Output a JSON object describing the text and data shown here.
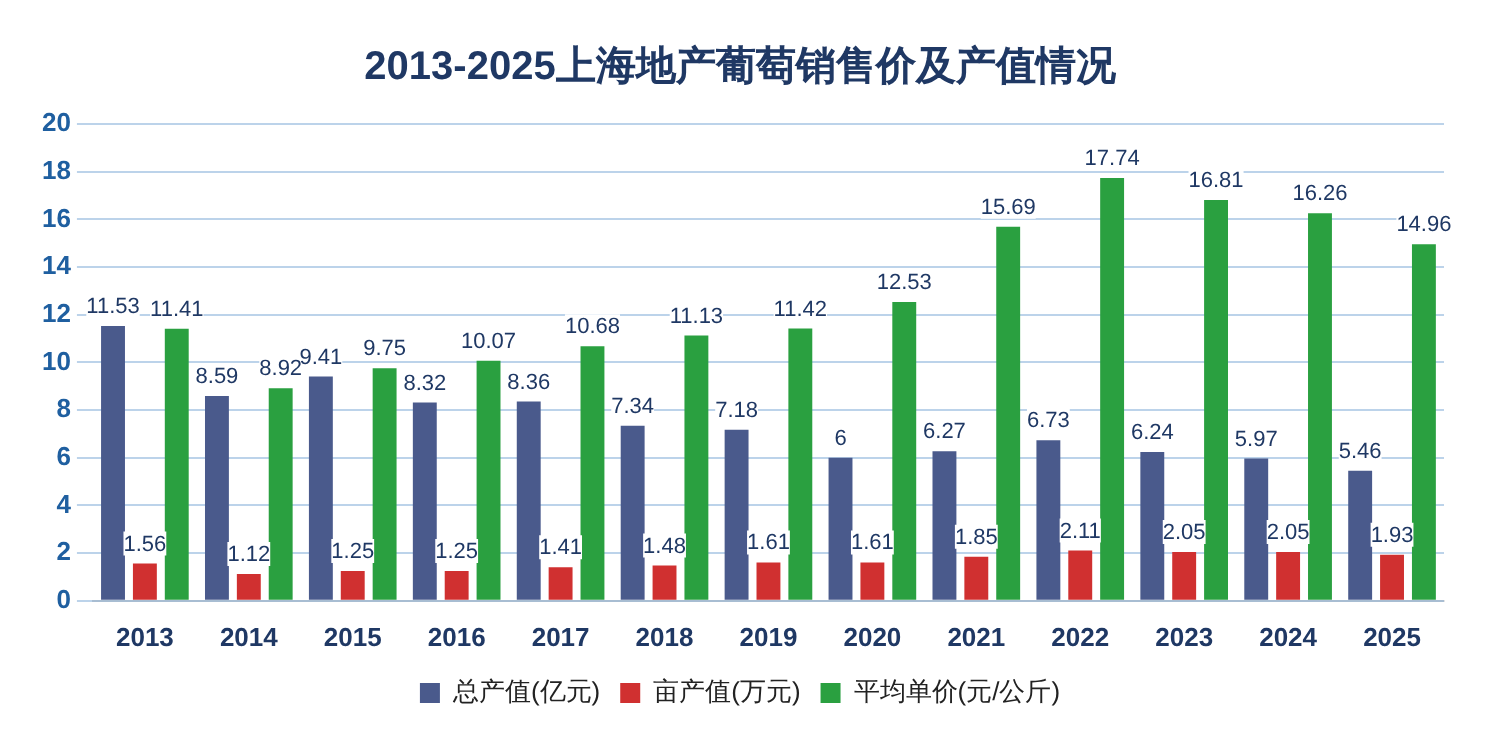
{
  "chart_data": {
    "type": "bar",
    "title": "2013-2025上海地产葡萄销售价及产值情况",
    "categories": [
      "2013",
      "2014",
      "2015",
      "2016",
      "2017",
      "2018",
      "2019",
      "2020",
      "2021",
      "2022",
      "2023",
      "2024",
      "2025"
    ],
    "series": [
      {
        "name": "总产值(亿元)",
        "color": "#4a5a8c",
        "values": [
          11.53,
          8.59,
          9.41,
          8.32,
          8.36,
          7.34,
          7.18,
          6,
          6.27,
          6.73,
          6.24,
          5.97,
          5.46
        ]
      },
      {
        "name": "亩产值(万元)",
        "color": "#d03030",
        "values": [
          1.56,
          1.12,
          1.25,
          1.25,
          1.41,
          1.48,
          1.61,
          1.61,
          1.85,
          2.11,
          2.05,
          2.05,
          1.93
        ]
      },
      {
        "name": "平均单价(元/公斤)",
        "color": "#2aa040",
        "values": [
          11.41,
          8.92,
          9.75,
          10.07,
          10.68,
          11.13,
          11.42,
          12.53,
          15.69,
          17.74,
          16.81,
          16.26,
          14.96
        ]
      }
    ],
    "ylim": [
      0,
      20
    ],
    "yticks": [
      0,
      2,
      4,
      6,
      8,
      10,
      12,
      14,
      16,
      18,
      20
    ],
    "grid": "y",
    "legend": "bottom",
    "data_labels": true
  }
}
